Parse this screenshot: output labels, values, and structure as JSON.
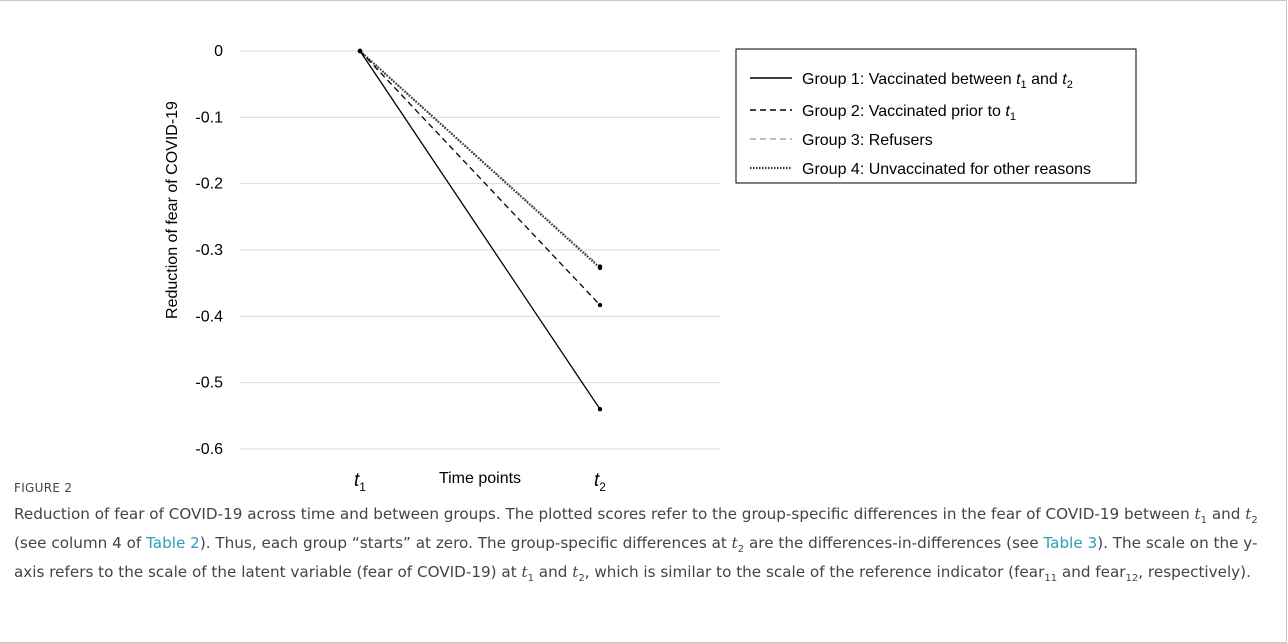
{
  "chart_data": {
    "type": "line",
    "categories": [
      "t1",
      "t2"
    ],
    "xlabel": "Time points",
    "ylabel": "Reduction of fear of COVID-19",
    "ylim": [
      -0.6,
      0
    ],
    "yticks": [
      "0",
      "-0.1",
      "-0.2",
      "-0.3",
      "-0.4",
      "-0.5",
      "-0.6"
    ],
    "grid": "horizontal",
    "legend_position": "top-right",
    "series": [
      {
        "name_pre": "Group 1: Vaccinated between ",
        "name_var1": "t",
        "name_sub1": "1",
        "name_mid": " and ",
        "name_var2": "t",
        "name_sub2": "2",
        "values": [
          0,
          -0.54
        ],
        "color": "#000000",
        "dash": "none"
      },
      {
        "name_pre": "Group 2: Vaccinated prior to ",
        "name_var1": "t",
        "name_sub1": "1",
        "values": [
          0,
          -0.383
        ],
        "color": "#000000",
        "dash": "6,4"
      },
      {
        "name_pre": "Group 3: Refusers",
        "values": [
          0,
          -0.325
        ],
        "color": "#a6a6a6",
        "dash": "6,4"
      },
      {
        "name_pre": "Group 4: Unvaccinated for other reasons",
        "values": [
          0,
          -0.327
        ],
        "color": "#3a3a3a",
        "dash": "1.5,1.5"
      }
    ]
  },
  "figure": {
    "label": "FIGURE 2",
    "caption": {
      "p1": "Reduction of fear of COVID-19 across time and between groups. The plotted scores refer to the group-specific differences in the fear of COVID-19 between ",
      "p2": " and ",
      "p3": " (see column 4 of ",
      "p4": "). Thus, each group “starts” at zero. The group-specific differences at ",
      "p5": " are the differences-in-differences (see ",
      "p6": "). The scale on the y-axis refers to the scale of the latent variable (fear of COVID-19) at ",
      "p7": " and ",
      "p8": ", which is similar to the scale of the reference indicator (fear",
      "p9": " and fear",
      "p10": ", respectively).",
      "link1": "Table 2",
      "link2": "Table 3",
      "t": "t",
      "s1": "1",
      "s2": "2",
      "s11": "11",
      "s12": "12"
    }
  }
}
